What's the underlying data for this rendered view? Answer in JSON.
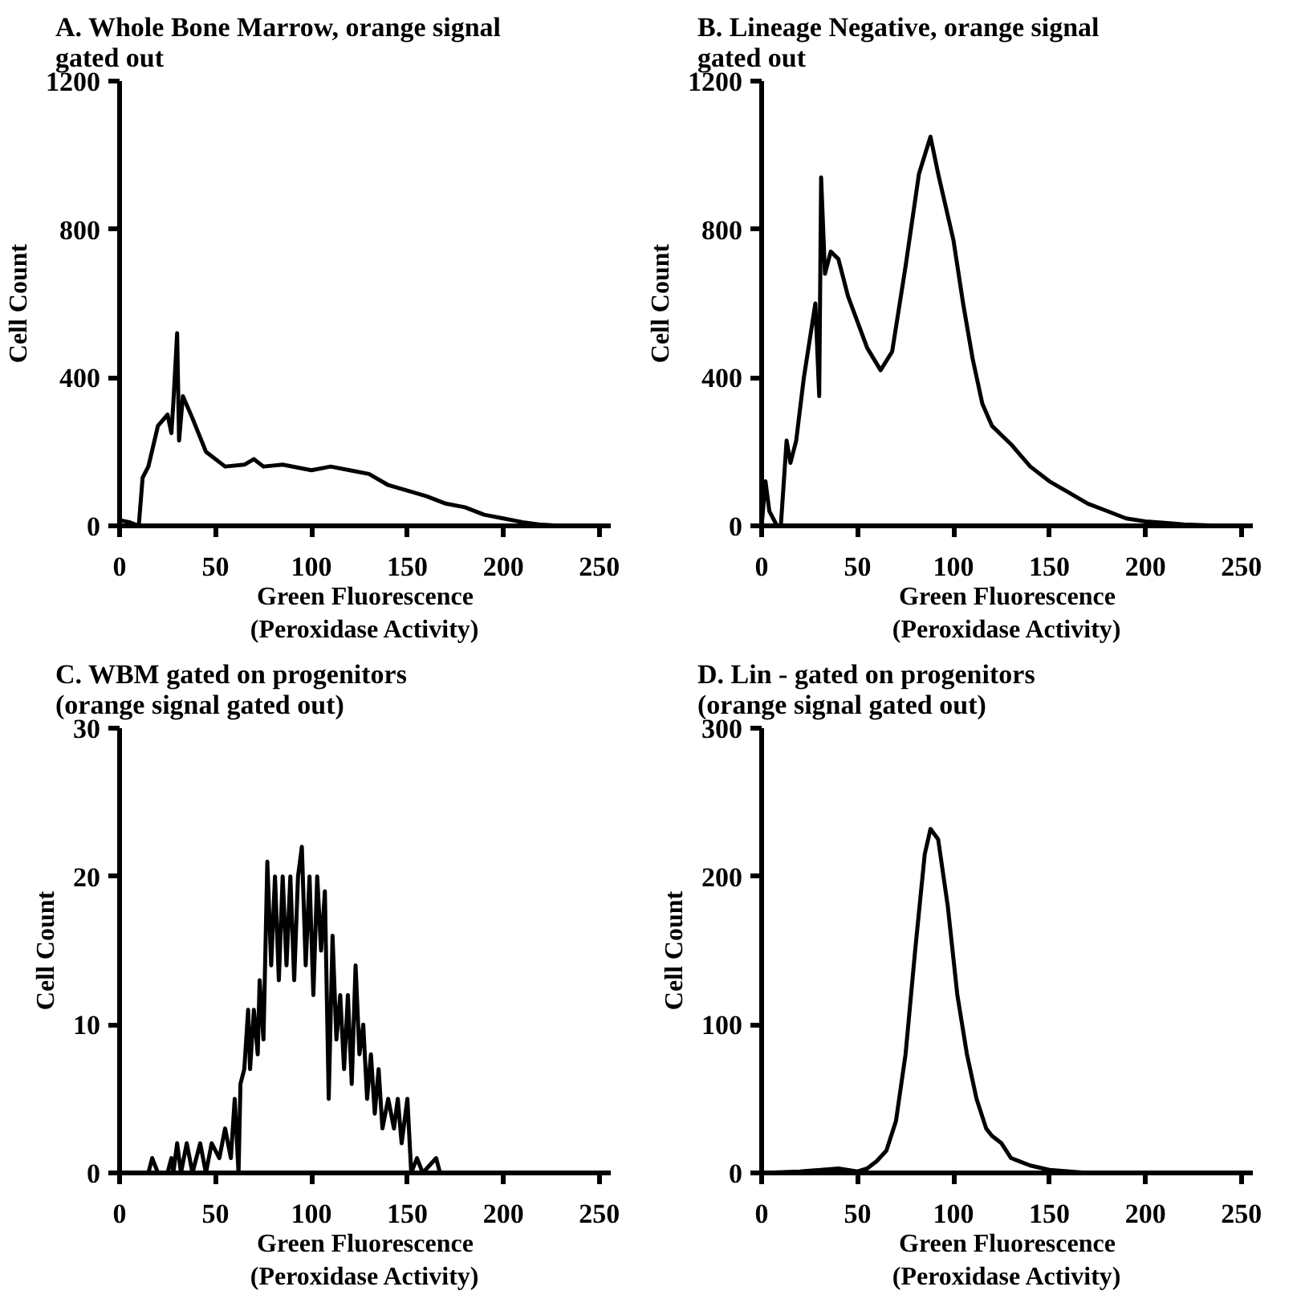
{
  "chart_data": [
    {
      "type": "line",
      "title": "A. Whole Bone Marrow, orange signal\ngated out",
      "xlabel": "Green Fluorescence\n(Peroxidase Activity)",
      "ylabel": "Cell Count",
      "xlim": [
        0,
        256
      ],
      "xticks": [
        0,
        50,
        100,
        150,
        200,
        250
      ],
      "ylim": [
        0,
        1200
      ],
      "yticks": [
        0,
        400,
        800,
        1200
      ],
      "grid": false,
      "x": [
        0,
        5,
        10,
        12,
        15,
        20,
        25,
        27,
        28,
        30,
        31,
        33,
        38,
        45,
        55,
        65,
        70,
        75,
        85,
        100,
        110,
        120,
        130,
        140,
        150,
        160,
        170,
        180,
        190,
        200,
        210,
        220,
        230,
        255
      ],
      "series": [
        {
          "color": "#000000",
          "values": [
            15,
            10,
            0,
            130,
            160,
            270,
            300,
            250,
            330,
            520,
            230,
            350,
            290,
            200,
            160,
            165,
            180,
            160,
            165,
            150,
            160,
            150,
            140,
            110,
            95,
            80,
            60,
            50,
            30,
            20,
            10,
            3,
            0,
            0
          ]
        }
      ]
    },
    {
      "type": "line",
      "title": "B. Lineage Negative, orange signal\ngated out",
      "xlabel": "Green Fluorescence\n(Peroxidase Activity)",
      "ylabel": "Cell Count",
      "xlim": [
        0,
        256
      ],
      "xticks": [
        0,
        50,
        100,
        150,
        200,
        250
      ],
      "ylim": [
        0,
        1200
      ],
      "yticks": [
        0,
        400,
        800,
        1200
      ],
      "grid": false,
      "x": [
        0,
        2,
        4,
        8,
        10,
        13,
        15,
        18,
        22,
        28,
        30,
        31,
        33,
        36,
        40,
        45,
        50,
        55,
        62,
        68,
        75,
        82,
        88,
        92,
        100,
        105,
        110,
        115,
        120,
        130,
        140,
        150,
        160,
        170,
        180,
        190,
        200,
        210,
        220,
        240,
        255
      ],
      "series": [
        {
          "color": "#000000",
          "values": [
            0,
            120,
            40,
            0,
            0,
            230,
            170,
            230,
            400,
            600,
            350,
            940,
            680,
            740,
            720,
            620,
            550,
            480,
            420,
            470,
            700,
            950,
            1050,
            950,
            770,
            600,
            450,
            330,
            270,
            220,
            160,
            120,
            90,
            60,
            40,
            20,
            12,
            8,
            4,
            0,
            0
          ]
        }
      ]
    },
    {
      "type": "line",
      "title": "C. WBM gated on progenitors\n(orange signal gated out)",
      "xlabel": "Green Fluorescence\n(Peroxidase Activity)",
      "ylabel": "Cell Count",
      "xlim": [
        0,
        256
      ],
      "xticks": [
        0,
        50,
        100,
        150,
        200,
        250
      ],
      "ylim": [
        0,
        30
      ],
      "yticks": [
        0,
        10,
        20,
        30
      ],
      "grid": false,
      "x": [
        0,
        15,
        17,
        20,
        25,
        27,
        28,
        30,
        32,
        35,
        38,
        42,
        45,
        48,
        52,
        55,
        58,
        60,
        62,
        63,
        65,
        67,
        68,
        70,
        72,
        73,
        75,
        77,
        79,
        81,
        83,
        85,
        87,
        89,
        91,
        93,
        95,
        97,
        99,
        101,
        103,
        105,
        107,
        109,
        111,
        113,
        115,
        117,
        119,
        121,
        123,
        125,
        127,
        129,
        131,
        133,
        135,
        137,
        140,
        143,
        145,
        147,
        150,
        152,
        155,
        158,
        165,
        167,
        255
      ],
      "series": [
        {
          "color": "#000000",
          "values": [
            0,
            0,
            1,
            0,
            0,
            1,
            0,
            2,
            0,
            2,
            0,
            2,
            0,
            2,
            1,
            3,
            1,
            5,
            0,
            6,
            7,
            11,
            7,
            11,
            8,
            13,
            9,
            21,
            14,
            20,
            13,
            20,
            14,
            20,
            13,
            20,
            22,
            14,
            20,
            12,
            20,
            15,
            19,
            5,
            16,
            9,
            12,
            7,
            12,
            6,
            14,
            8,
            10,
            5,
            8,
            4,
            7,
            3,
            5,
            3,
            5,
            2,
            5,
            0,
            1,
            0,
            1,
            0,
            0
          ]
        }
      ]
    },
    {
      "type": "line",
      "title": "D. Lin - gated on progenitors\n(orange signal gated out)",
      "xlabel": "Green Fluorescence\n(Peroxidase Activity)",
      "ylabel": "Cell Count",
      "xlim": [
        0,
        256
      ],
      "xticks": [
        0,
        50,
        100,
        150,
        200,
        250
      ],
      "ylim": [
        0,
        300
      ],
      "yticks": [
        0,
        100,
        200,
        300
      ],
      "grid": false,
      "x": [
        0,
        20,
        40,
        50,
        55,
        60,
        65,
        70,
        75,
        80,
        85,
        88,
        92,
        97,
        102,
        107,
        112,
        117,
        120,
        125,
        130,
        140,
        150,
        170,
        255
      ],
      "series": [
        {
          "color": "#000000",
          "values": [
            0,
            1,
            3,
            1,
            3,
            8,
            15,
            35,
            80,
            150,
            215,
            232,
            225,
            180,
            120,
            80,
            50,
            30,
            25,
            20,
            10,
            5,
            2,
            0,
            0
          ]
        }
      ]
    }
  ]
}
